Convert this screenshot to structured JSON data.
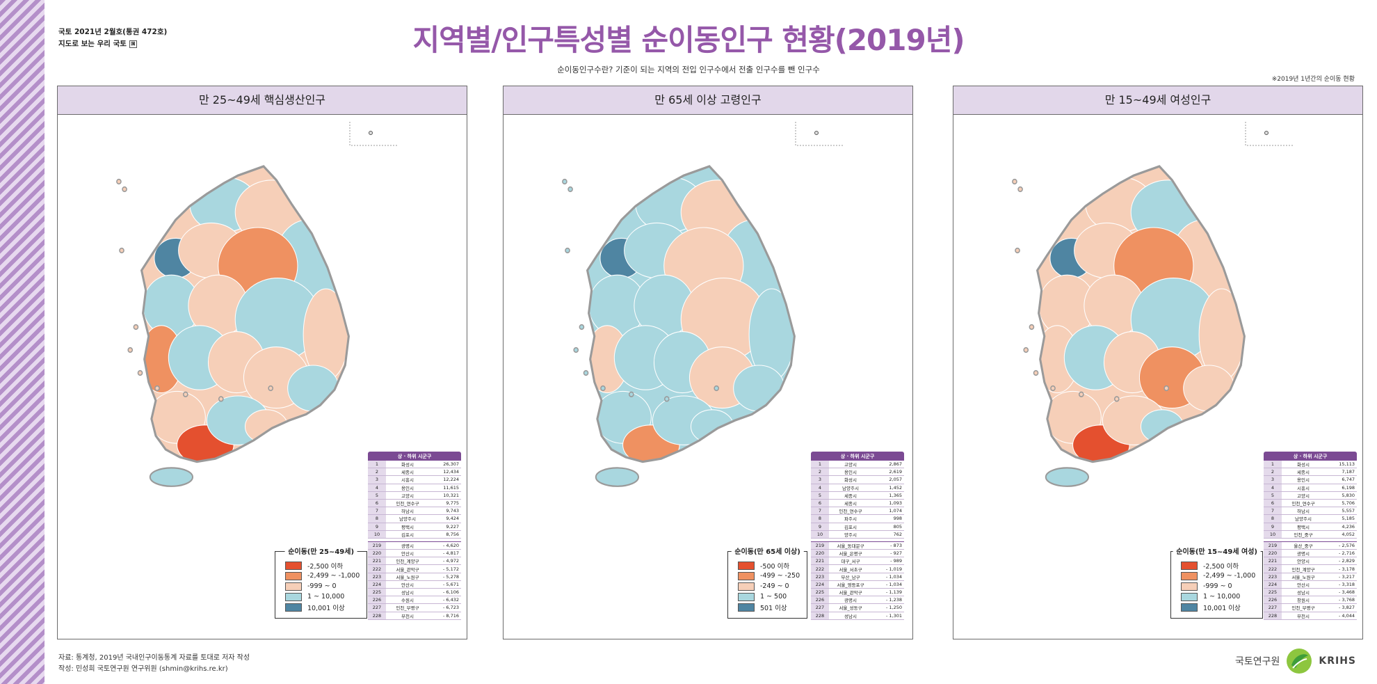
{
  "publication": {
    "issue": "국토 2021년 2월호(통권 472호)",
    "series": "지도로 보는 우리 국토",
    "series_mark": "国"
  },
  "title": "지역별/인구특성별 순이동인구 현황(2019년)",
  "subtitle": "순이동인구수란? 기준이 되는 지역의 전입 인구수에서 전출 인구수를 뺀 인구수",
  "note": "※2019년 1년간의 순이동 현황",
  "colors": {
    "neg_strong": "#e4502f",
    "neg_mid": "#ef9161",
    "neg_weak": "#f6cfb8",
    "pos_mid": "#a9d7df",
    "pos_strong": "#4f85a2",
    "header": "#e2d7ea",
    "title": "#9558a9",
    "table_head": "#7b4a93"
  },
  "panels": [
    {
      "title": "만 25~49세 핵심생산인구",
      "legend": {
        "title": "순이동(만 25~49세)",
        "items": [
          "-2,500 이하",
          "-2,499 ~ -1,000",
          "-999 ~ 0",
          "1 ~ 10,000",
          "10,001 이상"
        ]
      },
      "table": {
        "header": "상 · 하위 시군구",
        "top": [
          [
            "1",
            "화성시",
            "26,307"
          ],
          [
            "2",
            "세종시",
            "12,434"
          ],
          [
            "3",
            "시흥시",
            "12,224"
          ],
          [
            "4",
            "용인시",
            "11,615"
          ],
          [
            "5",
            "고양시",
            "10,321"
          ],
          [
            "6",
            "인천_연수구",
            "9,775"
          ],
          [
            "7",
            "하남시",
            "9,743"
          ],
          [
            "8",
            "남양주시",
            "9,424"
          ],
          [
            "9",
            "평택시",
            "9,227"
          ],
          [
            "10",
            "김포시",
            "8,756"
          ]
        ],
        "bottom": [
          [
            "219",
            "광명시",
            "- 4,620"
          ],
          [
            "220",
            "안산시",
            "- 4,817"
          ],
          [
            "221",
            "인천_계양구",
            "- 4,972"
          ],
          [
            "222",
            "서울_관악구",
            "- 5,172"
          ],
          [
            "223",
            "서울_노원구",
            "- 5,278"
          ],
          [
            "224",
            "안산시",
            "- 5,671"
          ],
          [
            "225",
            "성남시",
            "- 6,106"
          ],
          [
            "226",
            "수원시",
            "- 6,432"
          ],
          [
            "227",
            "인천_부평구",
            "- 6,723"
          ],
          [
            "228",
            "부천시",
            "- 8,716"
          ]
        ]
      }
    },
    {
      "title": "만 65세 이상 고령인구",
      "legend": {
        "title": "순이동(만 65세 이상)",
        "items": [
          "-500 이하",
          "-499 ~ -250",
          "-249 ~ 0",
          "1 ~ 500",
          "501 이상"
        ]
      },
      "table": {
        "header": "상 · 하위 시군구",
        "top": [
          [
            "1",
            "고양시",
            "2,867"
          ],
          [
            "2",
            "용인시",
            "2,619"
          ],
          [
            "3",
            "화성시",
            "2,057"
          ],
          [
            "4",
            "남양주시",
            "1,452"
          ],
          [
            "5",
            "세종시",
            "1,365"
          ],
          [
            "6",
            "세종시",
            "1,093"
          ],
          [
            "7",
            "인천_연수구",
            "1,074"
          ],
          [
            "8",
            "파주시",
            "998"
          ],
          [
            "9",
            "김포시",
            "805"
          ],
          [
            "10",
            "양주시",
            "762"
          ]
        ],
        "bottom": [
          [
            "219",
            "서울_동대문구",
            "- 873"
          ],
          [
            "220",
            "서울_은평구",
            "- 927"
          ],
          [
            "221",
            "대구_서구",
            "- 989"
          ],
          [
            "222",
            "서울_서초구",
            "- 1,019"
          ],
          [
            "223",
            "부산_남구",
            "- 1,034"
          ],
          [
            "224",
            "서울_영등포구",
            "- 1,034"
          ],
          [
            "225",
            "서울_관악구",
            "- 1,139"
          ],
          [
            "226",
            "광명시",
            "- 1,238"
          ],
          [
            "227",
            "서울_성동구",
            "- 1,250"
          ],
          [
            "228",
            "성남시",
            "- 1,301"
          ]
        ]
      }
    },
    {
      "title": "만 15~49세 여성인구",
      "legend": {
        "title": "순이동(만 15~49세 여성)",
        "items": [
          "-2,500 이하",
          "-2,499 ~ -1,000",
          "-999 ~ 0",
          "1 ~ 10,000",
          "10,001 이상"
        ]
      },
      "table": {
        "header": "상 · 하위 시군구",
        "top": [
          [
            "1",
            "화성시",
            "15,113"
          ],
          [
            "2",
            "세종시",
            "7,187"
          ],
          [
            "3",
            "용인시",
            "6,747"
          ],
          [
            "4",
            "시흥시",
            "6,198"
          ],
          [
            "5",
            "고양시",
            "5,830"
          ],
          [
            "6",
            "인천_연수구",
            "5,706"
          ],
          [
            "7",
            "하남시",
            "5,557"
          ],
          [
            "8",
            "남양주시",
            "5,185"
          ],
          [
            "9",
            "평택시",
            "4,236"
          ],
          [
            "10",
            "인천_중구",
            "4,052"
          ]
        ],
        "bottom": [
          [
            "219",
            "울산_중구",
            "- 2,576"
          ],
          [
            "220",
            "광명시",
            "- 2,716"
          ],
          [
            "221",
            "안양시",
            "- 2,829"
          ],
          [
            "222",
            "인천_계양구",
            "- 3,178"
          ],
          [
            "223",
            "서울_노원구",
            "- 3,217"
          ],
          [
            "224",
            "안산시",
            "- 3,318"
          ],
          [
            "225",
            "성남시",
            "- 3,468"
          ],
          [
            "226",
            "창원시",
            "- 3,768"
          ],
          [
            "227",
            "인천_부평구",
            "- 3,827"
          ],
          [
            "228",
            "부천시",
            "- 4,044"
          ]
        ]
      }
    }
  ],
  "source": "자료: 통계청, 2019년 국내인구이동통계 자료를 토대로 저자 작성",
  "author": "작성: 민성희 국토연구원 연구위원 (shmin@krihs.re.kr)",
  "logo": {
    "korean": "국토연구원",
    "english": "KRIHS"
  }
}
